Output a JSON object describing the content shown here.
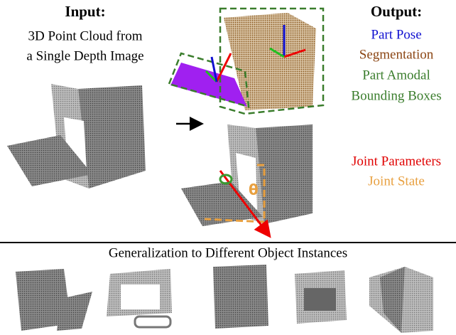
{
  "input": {
    "title": "Input:",
    "lines": [
      "3D Point Cloud from",
      "a Single Depth Image"
    ]
  },
  "output": {
    "title": "Output:",
    "items": [
      "Part Pose",
      "Segmentation",
      "Part Amodal",
      "Bounding Boxes"
    ],
    "joint_items": [
      "Joint Parameters",
      "Joint State"
    ]
  },
  "angle_label": "θ",
  "footer": {
    "title": "Generalization to Different Object Instances"
  }
}
